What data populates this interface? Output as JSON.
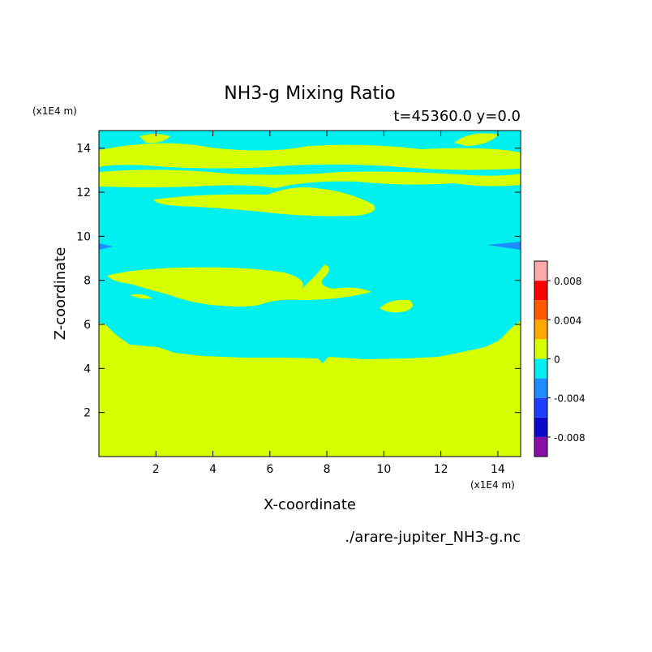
{
  "chart_data": {
    "type": "heatmap",
    "title": "NH3-g Mixing Ratio",
    "subtitle": "t=45360.0 y=0.0",
    "xlabel": "X-coordinate",
    "ylabel": "Z-coordinate",
    "x_unit": "(x1E4 m)",
    "y_unit": "(x1E4 m)",
    "source": "./arare-jupiter_NH3-g.nc",
    "xlim": [
      0,
      14.8
    ],
    "ylim": [
      0,
      14.8
    ],
    "x_ticks": [
      2,
      4,
      6,
      8,
      10,
      12,
      14
    ],
    "y_ticks": [
      2,
      4,
      6,
      8,
      10,
      12,
      14
    ],
    "colorbar": {
      "levels": [
        -0.01,
        -0.008,
        -0.006,
        -0.004,
        -0.002,
        0,
        0.002,
        0.004,
        0.006,
        0.008,
        0.01
      ],
      "colors": [
        "#8a0fa8",
        "#0a0ac8",
        "#1e3cff",
        "#1e8cff",
        "#00f0f0",
        "#d6ff00",
        "#ffa800",
        "#ff5a00",
        "#ff0000",
        "#ffaaaa"
      ],
      "tick_labels": [
        "0.008",
        "0.004",
        "0",
        "-0.004",
        "-0.008"
      ],
      "tick_values": [
        0.008,
        0.004,
        0,
        -0.004,
        -0.008
      ]
    },
    "regions": [
      {
        "level": "positive",
        "color": "#d6ff00",
        "z_range": [
          0,
          4.5
        ],
        "desc": "lower layer"
      },
      {
        "level": "negative",
        "color": "#00f0f0",
        "z_range": [
          4.5,
          14.8
        ],
        "desc": "upper layer"
      }
    ]
  }
}
